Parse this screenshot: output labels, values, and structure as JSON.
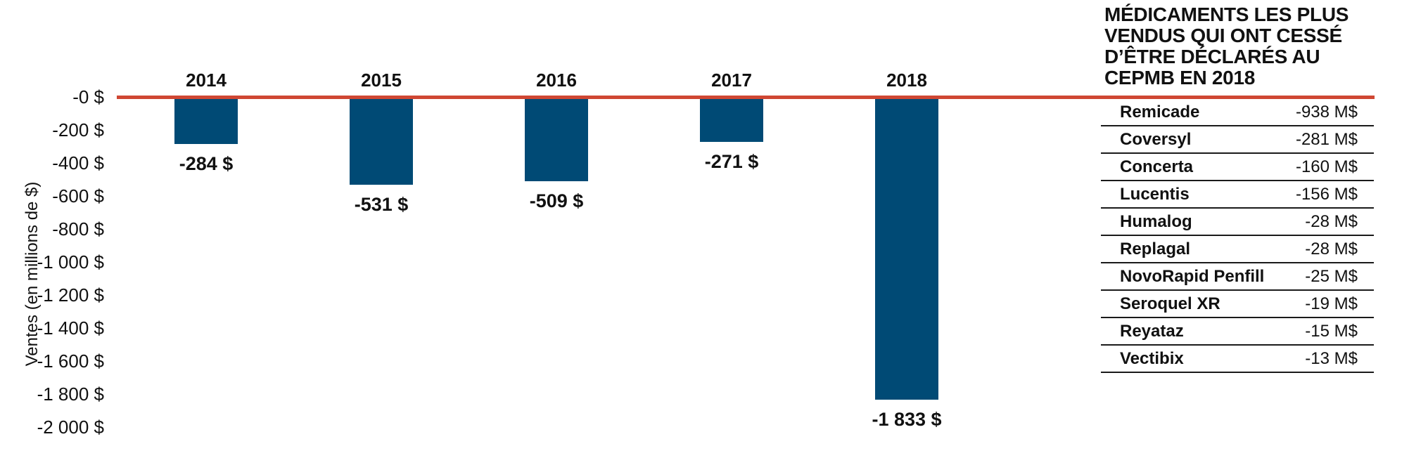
{
  "chart_data": {
    "type": "bar",
    "categories": [
      "2014",
      "2015",
      "2016",
      "2017",
      "2018"
    ],
    "values": [
      -284,
      -531,
      -509,
      -271,
      -1833
    ],
    "bar_labels": [
      "-284 $",
      "-531 $",
      "-509 $",
      "-271 $",
      "-1 833 $"
    ],
    "title": "",
    "xlabel": "",
    "ylabel": "Ventes (en millions de $)",
    "ylim": [
      -2000,
      0
    ],
    "y_ticks": [
      "-0 $",
      "-200 $",
      "-400 $",
      "-600 $",
      "-800 $",
      "-1 000 $",
      "-1 200 $",
      "-1 400 $",
      "-1 600 $",
      "-1 800 $",
      "-2 000 $"
    ],
    "grid": false,
    "legend": "none",
    "bar_color": "#004a75",
    "zero_line_color": "#cf4733"
  },
  "side_table": {
    "title_lines": [
      "MÉDICAMENTS LES PLUS",
      "VENDUS QUI ONT CESSÉ",
      "D’ÊTRE DÉCLARÉS AU",
      "CEPMB EN 2018"
    ],
    "rows": [
      {
        "name": "Remicade",
        "value": "-938 M$"
      },
      {
        "name": "Coversyl",
        "value": "-281 M$"
      },
      {
        "name": "Concerta",
        "value": "-160 M$"
      },
      {
        "name": "Lucentis",
        "value": "-156 M$"
      },
      {
        "name": "Humalog",
        "value": "-28 M$"
      },
      {
        "name": "Replagal",
        "value": "-28 M$"
      },
      {
        "name": "NovoRapid Penfill",
        "value": "-25 M$"
      },
      {
        "name": "Seroquel XR",
        "value": "-19 M$"
      },
      {
        "name": "Reyataz",
        "value": "-15 M$"
      },
      {
        "name": "Vectibix",
        "value": "-13 M$"
      }
    ]
  }
}
